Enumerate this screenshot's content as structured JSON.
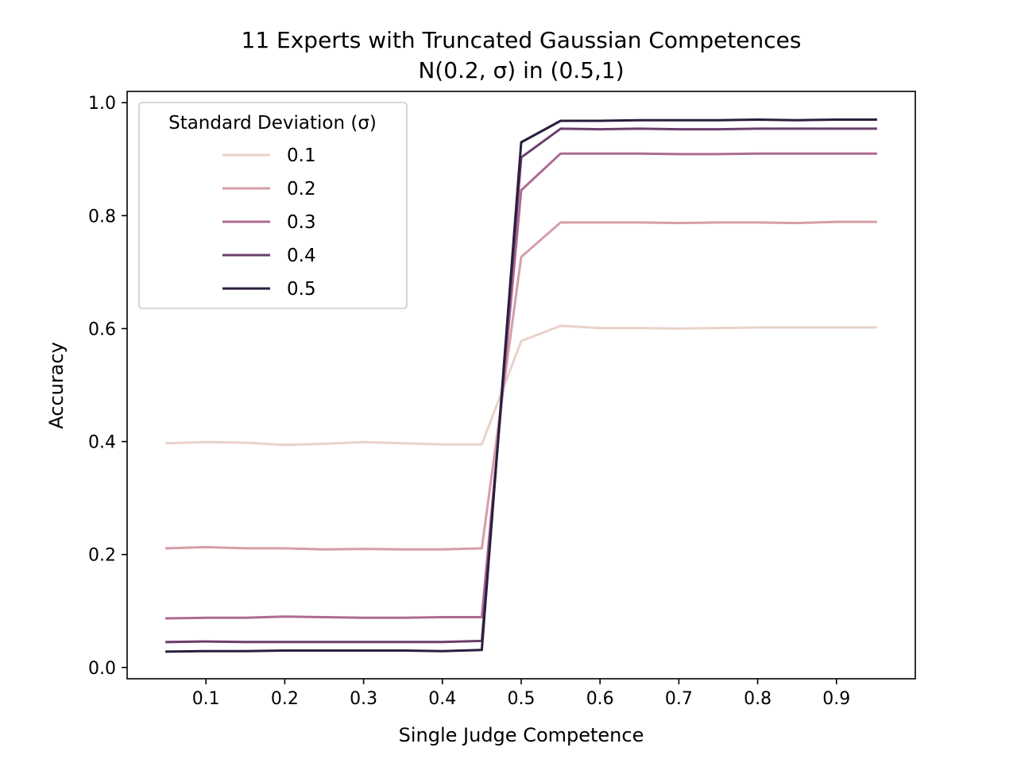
{
  "chart_data": {
    "type": "line",
    "title_line1": "11 Experts with Truncated Gaussian Competences",
    "title_line2": "N(0.2, σ) in (0.5,1)",
    "xlabel": "Single Judge Competence",
    "ylabel": "Accuracy",
    "xlim": [
      0.0,
      1.0
    ],
    "ylim": [
      -0.02,
      1.02
    ],
    "x_ticks": [
      "0.1",
      "0.2",
      "0.3",
      "0.4",
      "0.5",
      "0.6",
      "0.7",
      "0.8",
      "0.9"
    ],
    "y_ticks": [
      "0.0",
      "0.2",
      "0.4",
      "0.6",
      "0.8",
      "1.0"
    ],
    "legend_title": "Standard Deviation (σ)",
    "legend_position": "upper-left",
    "grid": false,
    "x": [
      0.05,
      0.1,
      0.15,
      0.2,
      0.25,
      0.3,
      0.35,
      0.4,
      0.45,
      0.5,
      0.55,
      0.6,
      0.65,
      0.7,
      0.75,
      0.8,
      0.85,
      0.9,
      0.95
    ],
    "series": [
      {
        "name": "0.1",
        "color": "#e8d2ca",
        "values": [
          0.397,
          0.399,
          0.398,
          0.394,
          0.396,
          0.399,
          0.397,
          0.395,
          0.395,
          0.578,
          0.605,
          0.601,
          0.601,
          0.6,
          0.601,
          0.602,
          0.602,
          0.602,
          0.602
        ]
      },
      {
        "name": "0.2",
        "color": "#d59ea8",
        "values": [
          0.211,
          0.213,
          0.211,
          0.211,
          0.209,
          0.21,
          0.209,
          0.209,
          0.211,
          0.727,
          0.788,
          0.788,
          0.788,
          0.787,
          0.788,
          0.788,
          0.787,
          0.789,
          0.789
        ]
      },
      {
        "name": "0.3",
        "color": "#ae6a93",
        "values": [
          0.087,
          0.088,
          0.088,
          0.09,
          0.089,
          0.088,
          0.088,
          0.089,
          0.089,
          0.845,
          0.91,
          0.91,
          0.91,
          0.909,
          0.909,
          0.91,
          0.91,
          0.91,
          0.91
        ]
      },
      {
        "name": "0.4",
        "color": "#6b3f6e",
        "values": [
          0.045,
          0.046,
          0.045,
          0.045,
          0.045,
          0.045,
          0.045,
          0.045,
          0.047,
          0.903,
          0.954,
          0.953,
          0.954,
          0.953,
          0.953,
          0.954,
          0.954,
          0.954,
          0.954
        ]
      },
      {
        "name": "0.5",
        "color": "#2b1e3e",
        "values": [
          0.028,
          0.029,
          0.029,
          0.03,
          0.03,
          0.03,
          0.03,
          0.029,
          0.031,
          0.93,
          0.968,
          0.968,
          0.969,
          0.969,
          0.969,
          0.97,
          0.969,
          0.97,
          0.97
        ]
      }
    ]
  }
}
